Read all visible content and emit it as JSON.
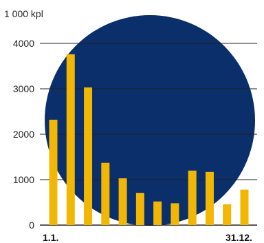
{
  "colors": {
    "background": "#ffffff",
    "circle": "#0a2f6b",
    "bar": "#f2b705",
    "gridline": "#222222",
    "text": "#222222"
  },
  "chart_data": {
    "type": "bar",
    "ylabel": "1 000 kpl",
    "ylim": [
      0,
      4000
    ],
    "yticks": [
      0,
      1000,
      2000,
      3000,
      4000
    ],
    "ytick_labels": [
      "0",
      "1000",
      "2000",
      "3000",
      "4000"
    ],
    "grid": true,
    "start_label": "1.1.",
    "end_label": "31.12.",
    "values": [
      2320,
      3760,
      3030,
      1370,
      1030,
      710,
      520,
      480,
      1200,
      1170,
      460,
      780
    ]
  }
}
